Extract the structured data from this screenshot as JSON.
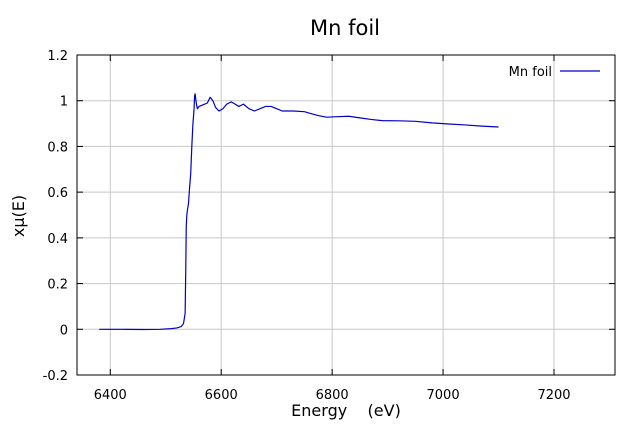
{
  "chart_data": {
    "type": "line",
    "title": "Mn foil",
    "xlabel": "Energy    (eV)",
    "ylabel": "xμ(E)",
    "xlim": [
      6340,
      7310
    ],
    "ylim": [
      -0.2,
      1.2
    ],
    "grid": true,
    "legend": {
      "position": "top-right"
    },
    "x_ticks": [
      {
        "value": 6400,
        "label": "6400"
      },
      {
        "value": 6600,
        "label": "6600"
      },
      {
        "value": 6800,
        "label": "6800"
      },
      {
        "value": 7000,
        "label": "7000"
      },
      {
        "value": 7200,
        "label": "7200"
      }
    ],
    "y_ticks": [
      {
        "value": -0.2,
        "label": "-0.2"
      },
      {
        "value": 0.0,
        "label": "0"
      },
      {
        "value": 0.2,
        "label": "0.2"
      },
      {
        "value": 0.4,
        "label": "0.4"
      },
      {
        "value": 0.6,
        "label": "0.6"
      },
      {
        "value": 0.8,
        "label": "0.8"
      },
      {
        "value": 1.0,
        "label": "1"
      },
      {
        "value": 1.2,
        "label": "1.2"
      }
    ],
    "series": [
      {
        "name": "Mn foil",
        "color": "#0000cc",
        "points": [
          [
            6380,
            0.0
          ],
          [
            6420,
            0.0
          ],
          [
            6460,
            -0.001
          ],
          [
            6490,
            0.0
          ],
          [
            6510,
            0.003
          ],
          [
            6520,
            0.006
          ],
          [
            6528,
            0.012
          ],
          [
            6532,
            0.025
          ],
          [
            6535,
            0.07
          ],
          [
            6536,
            0.25
          ],
          [
            6537,
            0.45
          ],
          [
            6538,
            0.5
          ],
          [
            6539,
            0.52
          ],
          [
            6541,
            0.55
          ],
          [
            6543,
            0.62
          ],
          [
            6545,
            0.68
          ],
          [
            6547,
            0.8
          ],
          [
            6549,
            0.9
          ],
          [
            6551,
            0.96
          ],
          [
            6552,
            1.02
          ],
          [
            6553,
            1.03
          ],
          [
            6555,
            0.99
          ],
          [
            6557,
            0.965
          ],
          [
            6560,
            0.975
          ],
          [
            6565,
            0.98
          ],
          [
            6570,
            0.985
          ],
          [
            6575,
            0.99
          ],
          [
            6580,
            1.015
          ],
          [
            6585,
            1.0
          ],
          [
            6590,
            0.97
          ],
          [
            6596,
            0.955
          ],
          [
            6603,
            0.965
          ],
          [
            6610,
            0.985
          ],
          [
            6618,
            0.995
          ],
          [
            6625,
            0.985
          ],
          [
            6632,
            0.975
          ],
          [
            6640,
            0.985
          ],
          [
            6650,
            0.965
          ],
          [
            6660,
            0.955
          ],
          [
            6670,
            0.965
          ],
          [
            6680,
            0.975
          ],
          [
            6690,
            0.975
          ],
          [
            6700,
            0.965
          ],
          [
            6710,
            0.955
          ],
          [
            6730,
            0.955
          ],
          [
            6750,
            0.952
          ],
          [
            6760,
            0.945
          ],
          [
            6775,
            0.935
          ],
          [
            6790,
            0.928
          ],
          [
            6810,
            0.93
          ],
          [
            6830,
            0.932
          ],
          [
            6850,
            0.925
          ],
          [
            6870,
            0.918
          ],
          [
            6890,
            0.913
          ],
          [
            6920,
            0.912
          ],
          [
            6950,
            0.91
          ],
          [
            6980,
            0.903
          ],
          [
            7010,
            0.898
          ],
          [
            7040,
            0.894
          ],
          [
            7070,
            0.889
          ],
          [
            7100,
            0.885
          ]
        ]
      }
    ]
  }
}
